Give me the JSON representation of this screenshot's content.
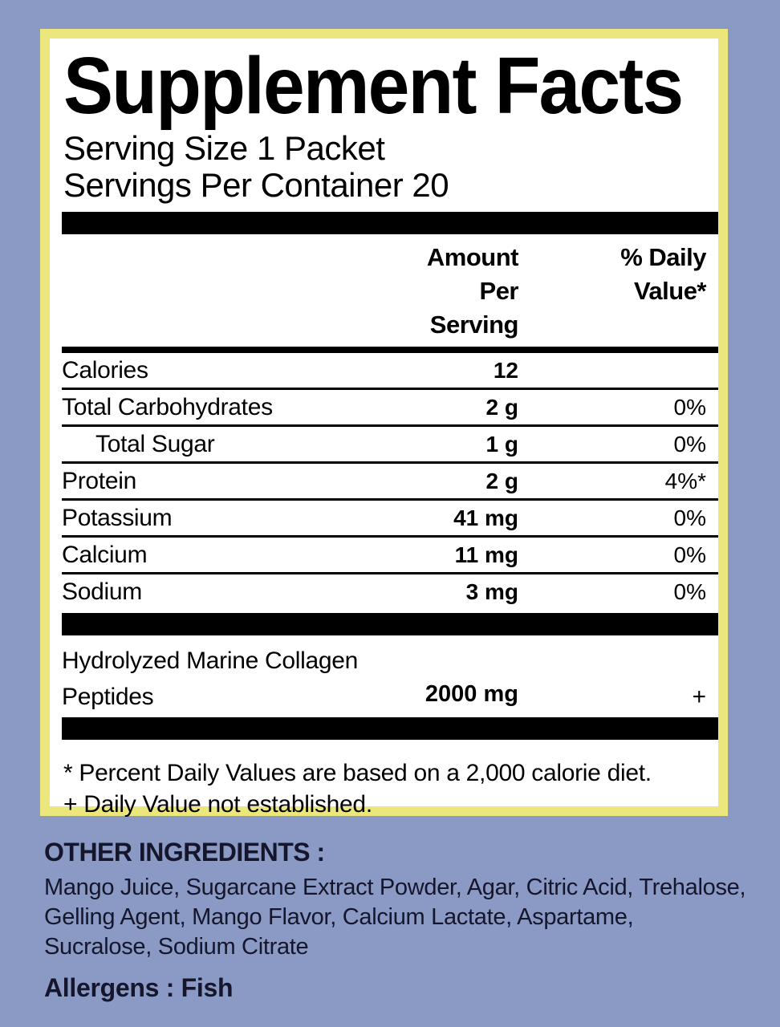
{
  "colors": {
    "background": "#8a9ac5",
    "frame": "#ebe77d",
    "panel": "#ffffff",
    "rule": "#000000",
    "bottom_ink": "#15152b"
  },
  "panel": {
    "title": "Supplement Facts",
    "serving_size": "Serving Size 1 Packet",
    "servings_per_container": "Servings Per Container 20",
    "header": {
      "amount_line1": "Amount Per",
      "amount_line2": "Serving",
      "dv_line1": "% Daily",
      "dv_line2": "Value*"
    },
    "rows": [
      {
        "name": "Calories",
        "amount": "12",
        "dv": ""
      },
      {
        "name": "Total Carbohydrates",
        "amount": "2 g",
        "dv": "0%"
      },
      {
        "name": "Total Sugar",
        "amount": "1 g",
        "dv": "0%"
      },
      {
        "name": "Protein",
        "amount": "2 g",
        "dv": "4%*"
      },
      {
        "name": "Potassium",
        "amount": "41 mg",
        "dv": "0%"
      },
      {
        "name": "Calcium",
        "amount": "11 mg",
        "dv": "0%"
      },
      {
        "name": "Sodium",
        "amount": "3 mg",
        "dv": "0%"
      }
    ],
    "collagen": {
      "name_line1": "Hydrolyzed Marine Collagen",
      "name_line2": "Peptides",
      "amount": "2000 mg",
      "dv": "+"
    },
    "footnote_line1": "* Percent Daily Values are based on a 2,000 calorie diet.",
    "footnote_line2": "+ Daily Value not established."
  },
  "bottom": {
    "other_ingredients_heading": "OTHER INGREDIENTS :",
    "other_ingredients_lines": [
      "Mango Juice, Sugarcane Extract Powder, Agar, Citric Acid, Trehalose,",
      "Gelling Agent, Mango Flavor, Calcium Lactate, Aspartame,",
      "Sucralose, Sodium Citrate"
    ],
    "allergens": "Allergens : Fish"
  }
}
